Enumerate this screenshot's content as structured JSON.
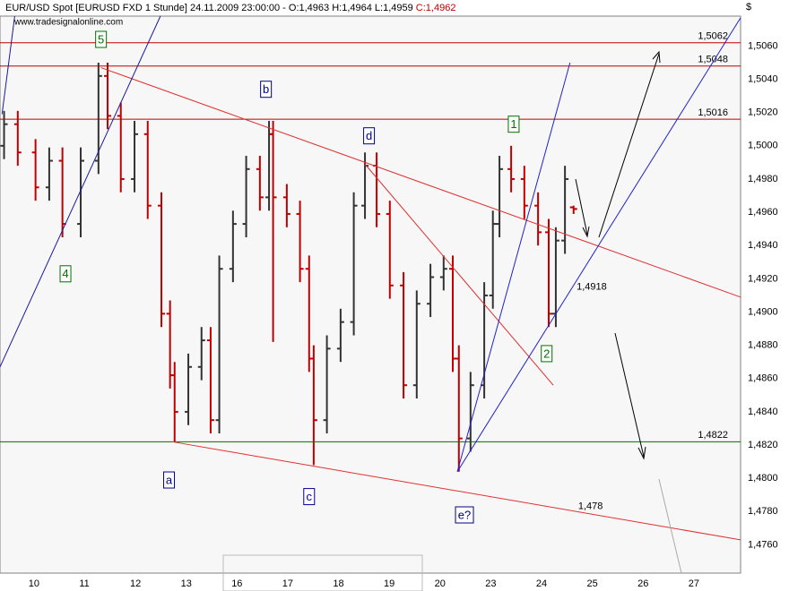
{
  "chart_data": {
    "type": "ohlc",
    "title": "EUR/USD Spot [EURUSD FXD  1 Stunde] 24.11.2009 23:00:00 - O:1,4963 H:1,4964 L:1,4959",
    "close_label": "C:1,4962",
    "source": "www.tradesignalonline.com",
    "currency": "$",
    "grid": true,
    "up_color": "#333333",
    "down_color": "#c00000",
    "xlim": [
      -0.49,
      14.1
    ],
    "xticks": [
      {
        "value": 0,
        "label": "10"
      },
      {
        "value": 1,
        "label": "11"
      },
      {
        "value": 2,
        "label": "12"
      },
      {
        "value": 3,
        "label": "13"
      },
      {
        "value": 4,
        "label": "16"
      },
      {
        "value": 5,
        "label": "17"
      },
      {
        "value": 6,
        "label": "18"
      },
      {
        "value": 7,
        "label": "19"
      },
      {
        "value": 8,
        "label": "20"
      },
      {
        "value": 9,
        "label": "23"
      },
      {
        "value": 10,
        "label": "24"
      },
      {
        "value": 11,
        "label": "25"
      },
      {
        "value": 12,
        "label": "26"
      },
      {
        "value": 13,
        "label": "27"
      }
    ],
    "ylim": [
      1.4743,
      1.5078
    ],
    "yticks": [
      {
        "value": 1.476,
        "label": "1,4760"
      },
      {
        "value": 1.478,
        "label": "1,4780"
      },
      {
        "value": 1.48,
        "label": "1,4800"
      },
      {
        "value": 1.482,
        "label": "1,4820"
      },
      {
        "value": 1.484,
        "label": "1,4840"
      },
      {
        "value": 1.486,
        "label": "1,4860"
      },
      {
        "value": 1.488,
        "label": "1,4880"
      },
      {
        "value": 1.49,
        "label": "1,4900"
      },
      {
        "value": 1.492,
        "label": "1,4920"
      },
      {
        "value": 1.494,
        "label": "1,4940"
      },
      {
        "value": 1.496,
        "label": "1,4960"
      },
      {
        "value": 1.498,
        "label": "1,4980"
      },
      {
        "value": 1.5,
        "label": "1,5000"
      },
      {
        "value": 1.502,
        "label": "1,5020"
      },
      {
        "value": 1.504,
        "label": "1,5040"
      },
      {
        "value": 1.506,
        "label": "1,5060"
      }
    ],
    "x": [
      -0.41,
      -0.14,
      0.21,
      0.48,
      0.74,
      1.1,
      1.45,
      1.63,
      1.89,
      2.16,
      2.42,
      2.69,
      2.86,
      2.95,
      3.22,
      3.48,
      3.66,
      3.83,
      4.1,
      4.36,
      4.63,
      4.81,
      4.89,
      5.16,
      5.42,
      5.6,
      5.69,
      5.95,
      6.22,
      6.48,
      6.7,
      6.93,
      7.19,
      7.46,
      7.72,
      7.99,
      8.25,
      8.43,
      8.55,
      8.78,
      9.05,
      9.22,
      9.35,
      9.58,
      9.84,
      10.11,
      10.32,
      10.46,
      10.64,
      10.81
    ],
    "open": [
      1.5,
      1.5013,
      1.4996,
      1.4975,
      1.4991,
      1.4953,
      1.4991,
      1.5042,
      1.5018,
      1.498,
      1.5007,
      1.4964,
      1.4899,
      1.4862,
      1.484,
      1.4867,
      1.4883,
      1.4835,
      1.4926,
      1.4953,
      1.4986,
      1.4969,
      1.5007,
      1.4969,
      1.4959,
      1.4926,
      1.4872,
      1.4835,
      1.4878,
      1.4894,
      1.4964,
      1.4988,
      1.4959,
      1.4916,
      1.4856,
      1.4905,
      1.4921,
      1.4926,
      1.4872,
      1.4824,
      1.4856,
      1.491,
      1.4953,
      1.4986,
      1.498,
      1.4964,
      1.4948,
      1.4899,
      1.4943,
      1.4963
    ],
    "high": [
      1.5021,
      1.5021,
      1.5004,
      1.4999,
      1.4999,
      1.4999,
      1.505,
      1.505,
      1.5026,
      1.5015,
      1.5015,
      1.4972,
      1.4907,
      1.487,
      1.4875,
      1.4891,
      1.4891,
      1.4934,
      1.4961,
      1.4994,
      1.4994,
      1.5015,
      1.5015,
      1.4977,
      1.4967,
      1.4934,
      1.488,
      1.4886,
      1.4902,
      1.4972,
      1.4996,
      1.4996,
      1.4967,
      1.4924,
      1.4913,
      1.4929,
      1.4934,
      1.4934,
      1.488,
      1.4864,
      1.4918,
      1.4961,
      1.4994,
      1.5,
      1.4988,
      1.4972,
      1.4956,
      1.4951,
      1.4988,
      1.4964
    ],
    "low": [
      1.4992,
      1.4988,
      1.4967,
      1.4967,
      1.4945,
      1.4945,
      1.4983,
      1.501,
      1.4972,
      1.4972,
      1.4956,
      1.4891,
      1.4854,
      1.4822,
      1.4832,
      1.4859,
      1.4827,
      1.4827,
      1.4918,
      1.4945,
      1.4961,
      1.4961,
      1.4882,
      1.4951,
      1.4918,
      1.4864,
      1.4808,
      1.4827,
      1.487,
      1.4886,
      1.4956,
      1.4951,
      1.4908,
      1.4848,
      1.4848,
      1.4897,
      1.4913,
      1.4864,
      1.4804,
      1.4816,
      1.4848,
      1.4902,
      1.4945,
      1.4972,
      1.4956,
      1.494,
      1.4891,
      1.4891,
      1.4935,
      1.4959
    ],
    "close": [
      1.5013,
      1.4996,
      1.4975,
      1.4991,
      1.4953,
      1.4991,
      1.5042,
      1.5018,
      1.498,
      1.5007,
      1.4964,
      1.4899,
      1.4862,
      1.484,
      1.4867,
      1.4883,
      1.4835,
      1.4926,
      1.4953,
      1.4986,
      1.4969,
      1.5007,
      1.4969,
      1.4959,
      1.4926,
      1.4872,
      1.4835,
      1.4878,
      1.4894,
      1.4964,
      1.4988,
      1.4959,
      1.4916,
      1.4856,
      1.4905,
      1.4921,
      1.4926,
      1.4872,
      1.4824,
      1.4856,
      1.491,
      1.4953,
      1.4986,
      1.498,
      1.4964,
      1.4948,
      1.4899,
      1.4943,
      1.498,
      1.4962
    ],
    "levels": [
      {
        "value": 1.5062,
        "label": "1,5062",
        "color": "#c00000"
      },
      {
        "value": 1.5048,
        "label": "1,5048",
        "color": "#c00000"
      },
      {
        "value": 1.5016,
        "label": "1,5016",
        "color": "#c00000"
      },
      {
        "value": 1.4822,
        "label": "1,4822",
        "color": "#007000"
      }
    ],
    "trend_lines": [
      {
        "color": "#e03030",
        "x": [
          1.5,
          14.1
        ],
        "y": [
          1.5047,
          1.4909
        ]
      },
      {
        "color": "#e03030",
        "x": [
          2.9,
          14.1
        ],
        "y": [
          1.4822,
          1.4763
        ]
      },
      {
        "color": "#e03030",
        "x": [
          6.7,
          10.41
        ],
        "y": [
          1.4989,
          1.4856
        ]
      },
      {
        "color": "#1a1aa0",
        "x": [
          -0.49,
          2.67
        ],
        "y": [
          1.4867,
          1.5078
        ]
      },
      {
        "color": "#1a1aa0",
        "x": [
          -0.45,
          -0.2
        ],
        "y": [
          1.5019,
          1.5078
        ]
      },
      {
        "color": "#2020d0",
        "x": [
          8.52,
          10.74
        ],
        "y": [
          1.4804,
          1.505
        ]
      },
      {
        "color": "#2020d0",
        "x": [
          8.52,
          14.1
        ],
        "y": [
          1.4804,
          1.5077
        ]
      }
    ],
    "line_labels": [
      {
        "text": "1,4918",
        "x": 10.87,
        "y": 1.4915,
        "color": "#2020d0"
      },
      {
        "text": "1,478",
        "x": 10.9,
        "y": 1.4783,
        "color": "#c00000"
      }
    ],
    "waves": [
      {
        "text": "5",
        "x": 1.5,
        "y": 1.5064,
        "color": "#007000"
      },
      {
        "text": "4",
        "x": 0.8,
        "y": 1.4923,
        "color": "#007000"
      },
      {
        "text": "b",
        "x": 4.75,
        "y": 1.5034,
        "color": "#00008b"
      },
      {
        "text": "d",
        "x": 6.78,
        "y": 1.5006,
        "color": "#00008b"
      },
      {
        "text": "1",
        "x": 9.63,
        "y": 1.5013,
        "color": "#007000"
      },
      {
        "text": "2",
        "x": 10.28,
        "y": 1.4875,
        "color": "#007000"
      },
      {
        "text": "a",
        "x": 2.84,
        "y": 1.4799,
        "color": "#00008b"
      },
      {
        "text": "c",
        "x": 5.6,
        "y": 1.4789,
        "color": "#00008b"
      },
      {
        "text": "e?",
        "x": 8.66,
        "y": 1.4778,
        "color": "#00008b"
      }
    ]
  }
}
